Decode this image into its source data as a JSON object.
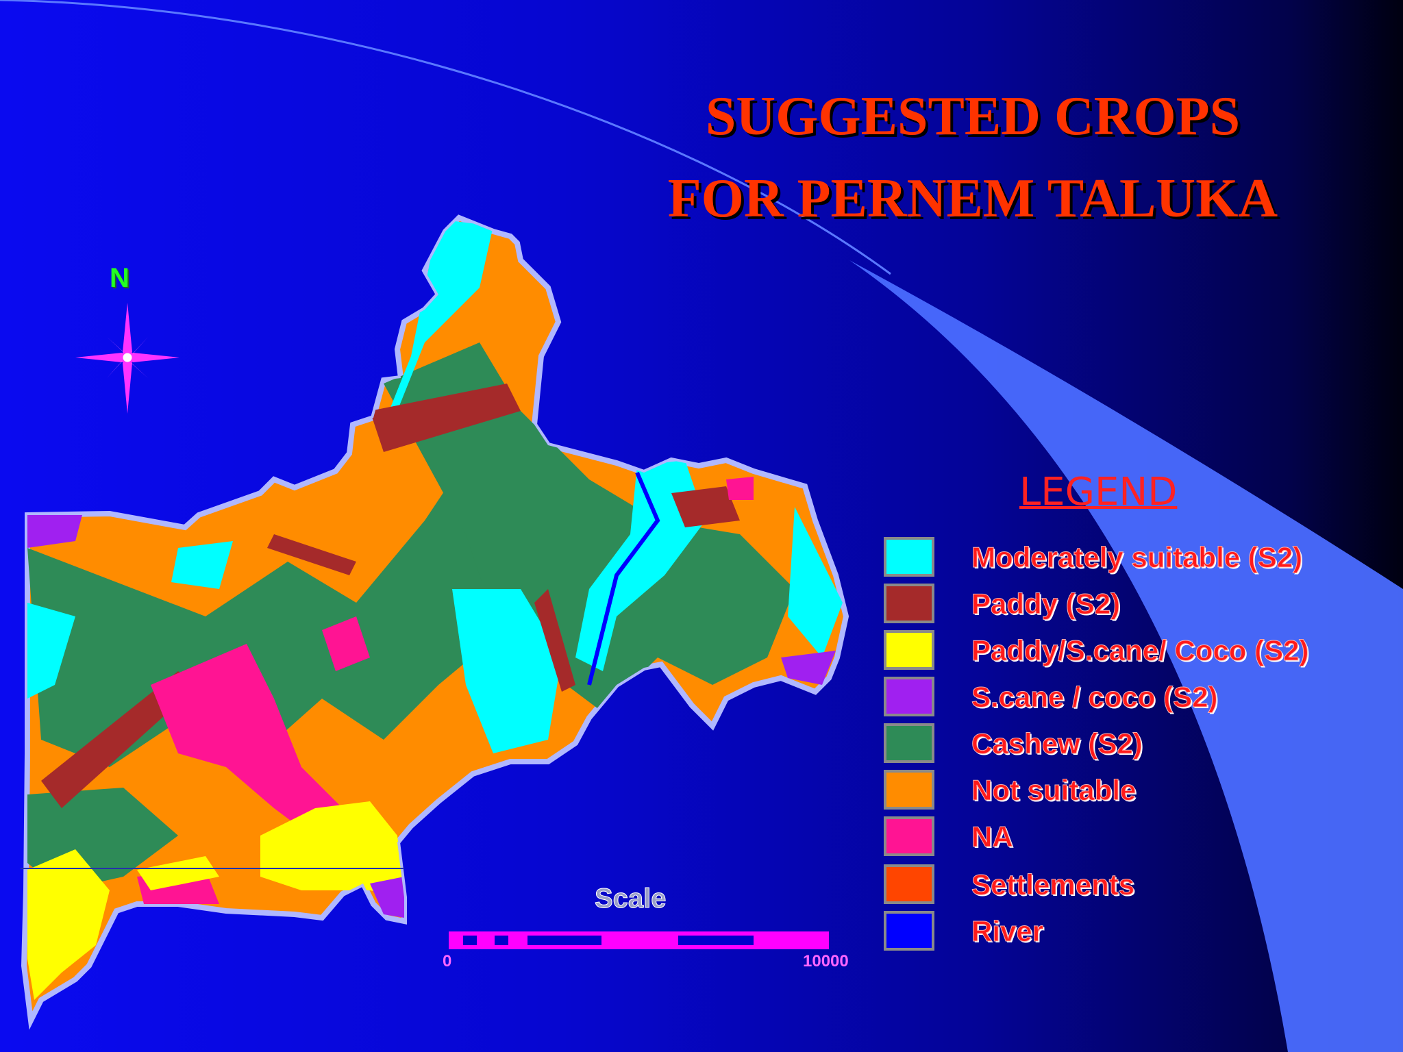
{
  "title": {
    "line1": "SUGGESTED CROPS",
    "line2": "FOR PERNEM TALUKA"
  },
  "north_arrow": {
    "label": "N",
    "icon": "compass-rose-icon"
  },
  "legend": {
    "title": "LEGEND",
    "items": [
      {
        "label": "Moderately suitable (S2)",
        "color": "#00ffff"
      },
      {
        "label": "Paddy (S2)",
        "color": "#a52a2a"
      },
      {
        "label": "Paddy/S.cane/ Coco (S2)",
        "color": "#ffff00"
      },
      {
        "label": "S.cane / coco (S2)",
        "color": "#a020f0"
      },
      {
        "label": "Cashew (S2)",
        "color": "#2e8b57"
      },
      {
        "label": "Not suitable",
        "color": "#ff8c00"
      },
      {
        "label": "NA",
        "color": "#ff1493"
      },
      {
        "label": "Settlements",
        "color": "#ff4500"
      },
      {
        "label": "River",
        "color": "#0000ff"
      }
    ]
  },
  "scale": {
    "title": "Scale",
    "min_label": "0",
    "max_label": "10000",
    "color": "#ff00ff"
  }
}
